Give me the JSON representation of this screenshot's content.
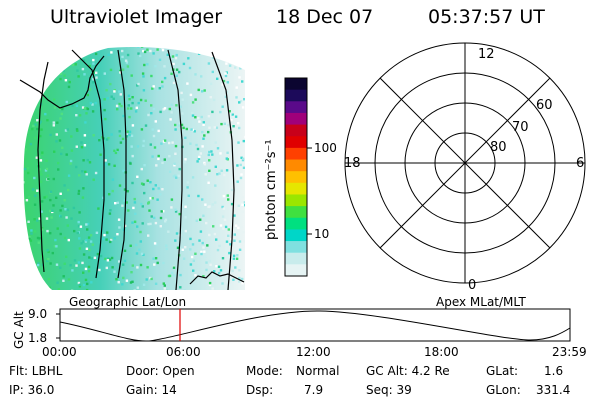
{
  "header": {
    "instrument": "Ultraviolet Imager",
    "date": "18 Dec 07",
    "time": "05:37:57 UT"
  },
  "colorbar": {
    "unit_label": "photon cm⁻²s⁻¹",
    "tick_labels": [
      "100",
      "10"
    ],
    "colors": [
      "#0b0530",
      "#1c0a5a",
      "#5a0a8a",
      "#a0007a",
      "#c8001a",
      "#e00000",
      "#ff4000",
      "#ff8a00",
      "#ffc000",
      "#e6e600",
      "#9be600",
      "#40e040",
      "#00e080",
      "#00d6c8",
      "#80e0e0",
      "#c8ecec",
      "#e6f4f4"
    ]
  },
  "polar_plot": {
    "mlt_labels": {
      "top": "12",
      "left": "18",
      "right": "6",
      "bottom": "0"
    },
    "lat_labels": [
      "60",
      "70",
      "80"
    ]
  },
  "map": {
    "caption": "Geographic Lat/Lon"
  },
  "polar_caption": "Apex MLat/MLT",
  "altitude_strip": {
    "axis_label": "GC Alt",
    "ytick_labels": [
      "9.0",
      "1.8"
    ],
    "time_labels": [
      "00:00",
      "06:00",
      "12:00",
      "18:00",
      "23:59"
    ],
    "marker_color": "#e00000"
  },
  "status": {
    "flt": "Flt: LBHL",
    "ip": "IP: 36.0",
    "door": "Door: Open",
    "gain": "Gain: 14",
    "mode_label": "Mode:",
    "mode_value": "Normal",
    "dsp_label": "Dsp:",
    "dsp_value": "7.9",
    "gcalt": "GC Alt: 4.2 Re",
    "seq": "Seq: 39",
    "glat_label": "GLat:",
    "glat_value": "1.6",
    "glon_label": "GLon:",
    "glon_value": "331.4"
  }
}
